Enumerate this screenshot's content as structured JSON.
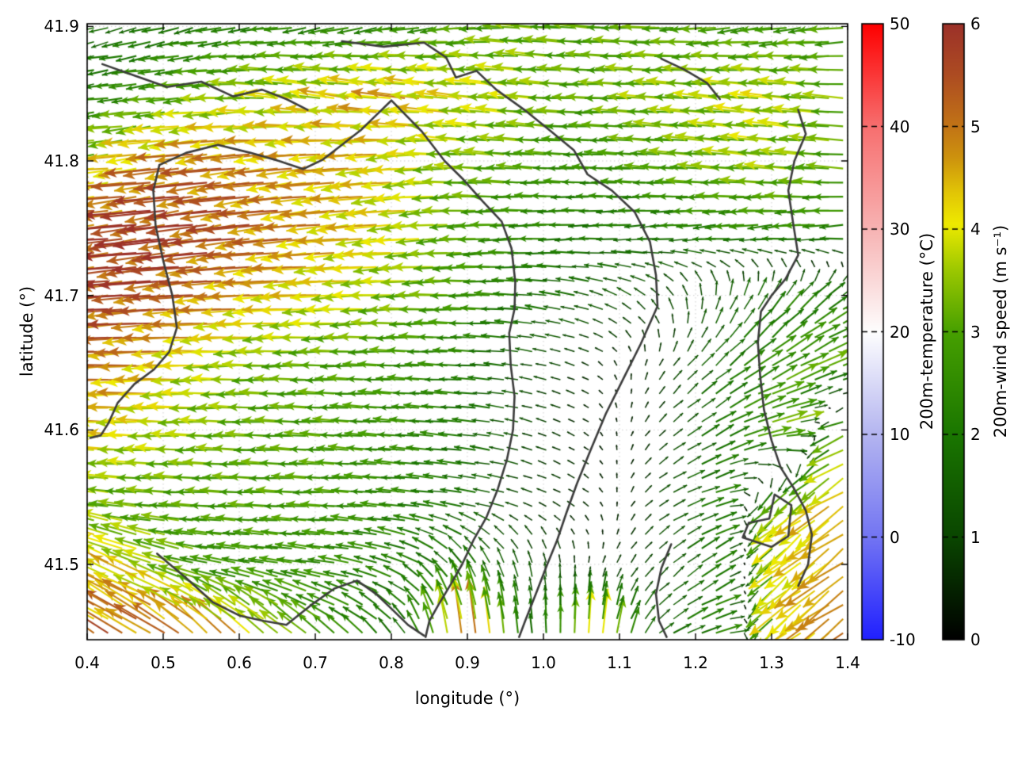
{
  "chart_data": {
    "type": "quiver_map_with_contours",
    "title": "",
    "xlabel": "longitude (°)",
    "ylabel": "latitude (°)",
    "x_range": [
      0.4,
      1.4
    ],
    "y_range": [
      41.444,
      41.902
    ],
    "x_tick_values": [
      0.4,
      0.5,
      0.6,
      0.7,
      0.8,
      0.9,
      1.0,
      1.1,
      1.2,
      1.3,
      1.4
    ],
    "x_ticks": [
      "0.4",
      "0.5",
      "0.6",
      "0.7",
      "0.8",
      "0.9",
      "1.0",
      "1.1",
      "1.2",
      "1.3",
      "1.4"
    ],
    "y_tick_values": [
      41.9,
      41.8,
      41.7,
      41.6,
      41.5
    ],
    "y_ticks": [
      "41.9",
      "41.8",
      "41.7",
      "41.6",
      "41.5"
    ],
    "grid": "dotted",
    "grid_color": "#aaaaaa",
    "contour_color": "#3c3c3c",
    "colorbars": [
      {
        "label": "200m-temperature (°C)",
        "min": -10,
        "max": 50,
        "tick_values": [
          50,
          40,
          30,
          20,
          10,
          0,
          -10
        ],
        "tick_labels": [
          "50",
          "40",
          "30",
          "20",
          "10",
          "0",
          "-10"
        ],
        "stops": [
          [
            -10,
            "#2020ff"
          ],
          [
            0,
            "#7375f3"
          ],
          [
            10,
            "#b4b5f0"
          ],
          [
            20,
            "#fefefe"
          ],
          [
            30,
            "#f7b3b3"
          ],
          [
            40,
            "#f76f6f"
          ],
          [
            50,
            "#fe0000"
          ]
        ]
      },
      {
        "label": "200m-wind speed (m s⁻¹)",
        "min": 0,
        "max": 6,
        "tick_values": [
          6,
          5,
          4,
          3,
          2,
          1,
          0
        ],
        "tick_labels": [
          "6",
          "5",
          "4",
          "3",
          "2",
          "1",
          "0"
        ],
        "stops": [
          [
            0,
            "#000000"
          ],
          [
            1,
            "#0a4600"
          ],
          [
            2,
            "#1a7600"
          ],
          [
            3,
            "#47a000"
          ],
          [
            3.6,
            "#9cc800"
          ],
          [
            4.05,
            "#eeea00"
          ],
          [
            4.35,
            "#e2c606"
          ],
          [
            4.7,
            "#cd920e"
          ],
          [
            5,
            "#c27416"
          ],
          [
            5.5,
            "#ad4c22"
          ],
          [
            6,
            "#9c3129"
          ]
        ]
      }
    ],
    "wind_field": {
      "units": "m s⁻¹",
      "lon_nodes": [
        0.4,
        0.483,
        0.567,
        0.65,
        0.733,
        0.817,
        0.9,
        0.983,
        1.067,
        1.15,
        1.233,
        1.317,
        1.4
      ],
      "lat_nodes": [
        41.9,
        41.849,
        41.799,
        41.748,
        41.698,
        41.647,
        41.597,
        41.546,
        41.496,
        41.445
      ],
      "u": [
        [
          -1.5,
          -1.8,
          -2.0,
          -2.3,
          -2.2,
          -2.4,
          -2.8,
          -3.2,
          -3.0,
          -3.0,
          -2.8,
          -2.6,
          -2.8
        ],
        [
          -2.0,
          -2.6,
          -3.2,
          -3.6,
          -4.0,
          -4.4,
          -4.0,
          -3.6,
          -3.0,
          -3.4,
          -3.5,
          -3.8,
          -3.2
        ],
        [
          -3.5,
          -4.6,
          -5.0,
          -4.6,
          -4.4,
          -4.0,
          -3.4,
          -3.0,
          -2.5,
          -2.9,
          -3.3,
          -3.5,
          -3.0
        ],
        [
          -5.2,
          -5.8,
          -5.4,
          -5.0,
          -4.4,
          -3.9,
          -3.0,
          -2.4,
          -2.0,
          -1.9,
          -2.3,
          -2.4,
          -2.4
        ],
        [
          -5.4,
          -5.4,
          -4.9,
          -4.3,
          -3.9,
          -3.4,
          -2.9,
          -2.0,
          -1.4,
          -0.9,
          0.3,
          1.2,
          1.8
        ],
        [
          -5.2,
          -4.6,
          -3.8,
          -3.2,
          -2.9,
          -2.7,
          -2.2,
          -1.2,
          -0.6,
          0.4,
          1.4,
          2.4,
          3.0
        ],
        [
          -4.4,
          -3.9,
          -3.4,
          -3.0,
          -2.9,
          -2.6,
          -2.0,
          -1.0,
          -0.4,
          0.6,
          1.8,
          3.4,
          -3.6
        ],
        [
          -3.4,
          -3.0,
          -2.9,
          -2.9,
          -2.8,
          -2.4,
          -1.8,
          -0.9,
          -0.5,
          0.9,
          2.2,
          -3.0,
          -3.6
        ],
        [
          -4.0,
          -3.6,
          -2.6,
          -2.6,
          -2.5,
          -2.0,
          -1.0,
          -0.3,
          0.2,
          0.8,
          1.8,
          -3.0,
          -3.8
        ],
        [
          -4.2,
          -4.4,
          -3.6,
          -2.8,
          -2.0,
          -1.0,
          -0.6,
          -0.2,
          0.3,
          1.2,
          2.4,
          -3.2,
          -4.0
        ]
      ],
      "v": [
        [
          -0.4,
          -0.5,
          -0.4,
          -0.3,
          -0.5,
          -0.4,
          -0.3,
          0.3,
          0.2,
          0.0,
          -0.3,
          -0.4,
          -0.3
        ],
        [
          -0.3,
          -0.3,
          -0.2,
          0.4,
          0.6,
          0.5,
          0.4,
          0.3,
          0.0,
          0.2,
          0.3,
          0.4,
          0.2
        ],
        [
          -0.4,
          -0.6,
          -0.7,
          -0.6,
          -0.5,
          -0.4,
          0.2,
          0.2,
          0.1,
          0.2,
          0.3,
          0.3,
          0.2
        ],
        [
          -0.6,
          -0.8,
          -0.8,
          -0.6,
          -0.5,
          -0.4,
          -0.2,
          -0.1,
          -0.1,
          -0.2,
          -0.3,
          -0.3,
          -0.2
        ],
        [
          -0.5,
          -0.5,
          -0.4,
          -0.3,
          -0.2,
          -0.1,
          0.0,
          0.2,
          0.4,
          0.8,
          1.4,
          1.6,
          1.2
        ],
        [
          -0.3,
          -0.2,
          -0.1,
          0.0,
          0.0,
          0.1,
          0.1,
          0.2,
          0.3,
          0.7,
          1.2,
          1.4,
          1.0
        ],
        [
          0.2,
          0.1,
          0.1,
          0.1,
          0.2,
          0.2,
          0.2,
          0.3,
          0.3,
          0.6,
          1.0,
          0.6,
          -1.4
        ],
        [
          0.5,
          0.2,
          0.1,
          0.1,
          0.1,
          0.2,
          0.3,
          0.3,
          0.4,
          0.6,
          0.6,
          -2.4,
          -2.6
        ],
        [
          2.0,
          1.4,
          0.5,
          0.4,
          0.4,
          0.8,
          1.6,
          1.2,
          0.6,
          0.8,
          1.2,
          -2.5,
          -2.8
        ],
        [
          2.6,
          2.8,
          3.2,
          2.6,
          1.6,
          1.6,
          5.0,
          2.0,
          4.2,
          1.0,
          0.6,
          -2.6,
          -3.0
        ]
      ]
    },
    "contours": [
      [
        [
          0.42,
          41.872
        ],
        [
          0.465,
          41.863
        ],
        [
          0.505,
          41.855
        ],
        [
          0.55,
          41.859
        ],
        [
          0.592,
          41.848
        ],
        [
          0.63,
          41.853
        ],
        [
          0.662,
          41.846
        ],
        [
          0.69,
          41.838
        ]
      ],
      [
        [
          0.495,
          41.797
        ],
        [
          0.53,
          41.806
        ],
        [
          0.572,
          41.812
        ],
        [
          0.615,
          41.806
        ],
        [
          0.652,
          41.8
        ],
        [
          0.684,
          41.794
        ],
        [
          0.71,
          41.801
        ],
        [
          0.735,
          41.812
        ],
        [
          0.76,
          41.823
        ],
        [
          0.78,
          41.834
        ],
        [
          0.8,
          41.845
        ],
        [
          0.84,
          41.822
        ],
        [
          0.87,
          41.8
        ],
        [
          0.895,
          41.786
        ],
        [
          0.92,
          41.77
        ],
        [
          0.945,
          41.755
        ],
        [
          0.958,
          41.735
        ],
        [
          0.963,
          41.71
        ],
        [
          0.962,
          41.69
        ],
        [
          0.955,
          41.672
        ],
        [
          0.957,
          41.648
        ],
        [
          0.962,
          41.625
        ],
        [
          0.96,
          41.6
        ],
        [
          0.952,
          41.578
        ],
        [
          0.94,
          41.556
        ],
        [
          0.925,
          41.535
        ],
        [
          0.908,
          41.518
        ],
        [
          0.893,
          41.5
        ],
        [
          0.878,
          41.485
        ],
        [
          0.862,
          41.47
        ],
        [
          0.85,
          41.458
        ],
        [
          0.845,
          41.446
        ]
      ],
      [
        [
          0.735,
          41.889
        ],
        [
          0.79,
          41.885
        ],
        [
          0.843,
          41.888
        ],
        [
          0.872,
          41.877
        ],
        [
          0.885,
          41.862
        ],
        [
          0.912,
          41.867
        ],
        [
          0.938,
          41.853
        ],
        [
          0.975,
          41.838
        ],
        [
          1.01,
          41.822
        ],
        [
          1.04,
          41.808
        ],
        [
          1.058,
          41.79
        ],
        [
          1.09,
          41.778
        ],
        [
          1.12,
          41.762
        ],
        [
          1.14,
          41.74
        ],
        [
          1.148,
          41.715
        ],
        [
          1.15,
          41.692
        ],
        [
          1.128,
          41.664
        ],
        [
          1.105,
          41.638
        ],
        [
          1.082,
          41.612
        ],
        [
          1.062,
          41.585
        ],
        [
          1.044,
          41.56
        ],
        [
          1.03,
          41.538
        ],
        [
          1.018,
          41.518
        ],
        [
          1.005,
          41.5
        ],
        [
          0.99,
          41.478
        ],
        [
          0.976,
          41.458
        ],
        [
          0.968,
          41.446
        ]
      ],
      [
        [
          1.335,
          41.838
        ],
        [
          1.345,
          41.82
        ],
        [
          1.33,
          41.8
        ],
        [
          1.322,
          41.778
        ],
        [
          1.328,
          41.755
        ],
        [
          1.335,
          41.73
        ],
        [
          1.318,
          41.712
        ],
        [
          1.3,
          41.7
        ],
        [
          1.286,
          41.688
        ],
        [
          1.282,
          41.665
        ],
        [
          1.285,
          41.64
        ],
        [
          1.29,
          41.615
        ],
        [
          1.3,
          41.592
        ],
        [
          1.312,
          41.572
        ],
        [
          1.33,
          41.556
        ],
        [
          1.345,
          41.54
        ],
        [
          1.353,
          41.522
        ],
        [
          1.348,
          41.5
        ],
        [
          1.335,
          41.484
        ]
      ],
      [
        [
          1.262,
          41.52
        ],
        [
          1.3,
          41.513
        ],
        [
          1.322,
          41.521
        ],
        [
          1.326,
          41.544
        ],
        [
          1.304,
          41.552
        ],
        [
          1.297,
          41.534
        ],
        [
          1.27,
          41.531
        ],
        [
          1.262,
          41.52
        ]
      ],
      [
        [
          0.495,
          41.797
        ],
        [
          0.487,
          41.778
        ],
        [
          0.49,
          41.752
        ],
        [
          0.5,
          41.726
        ],
        [
          0.512,
          41.7
        ],
        [
          0.518,
          41.676
        ],
        [
          0.508,
          41.658
        ],
        [
          0.488,
          41.645
        ],
        [
          0.462,
          41.634
        ],
        [
          0.44,
          41.62
        ],
        [
          0.428,
          41.605
        ],
        [
          0.418,
          41.596
        ],
        [
          0.404,
          41.594
        ]
      ],
      [
        [
          0.492,
          41.508
        ],
        [
          0.53,
          41.49
        ],
        [
          0.565,
          41.472
        ],
        [
          0.6,
          41.462
        ],
        [
          0.632,
          41.458
        ],
        [
          0.662,
          41.455
        ],
        [
          0.695,
          41.47
        ],
        [
          0.725,
          41.482
        ],
        [
          0.755,
          41.488
        ],
        [
          0.78,
          41.478
        ],
        [
          0.802,
          41.466
        ],
        [
          0.822,
          41.455
        ],
        [
          0.843,
          41.447
        ]
      ],
      [
        [
          1.168,
          41.515
        ],
        [
          1.155,
          41.497
        ],
        [
          1.148,
          41.478
        ],
        [
          1.152,
          41.458
        ],
        [
          1.162,
          41.446
        ]
      ],
      [
        [
          1.155,
          41.876
        ],
        [
          1.185,
          41.868
        ],
        [
          1.215,
          41.858
        ],
        [
          1.232,
          41.846
        ]
      ]
    ]
  }
}
